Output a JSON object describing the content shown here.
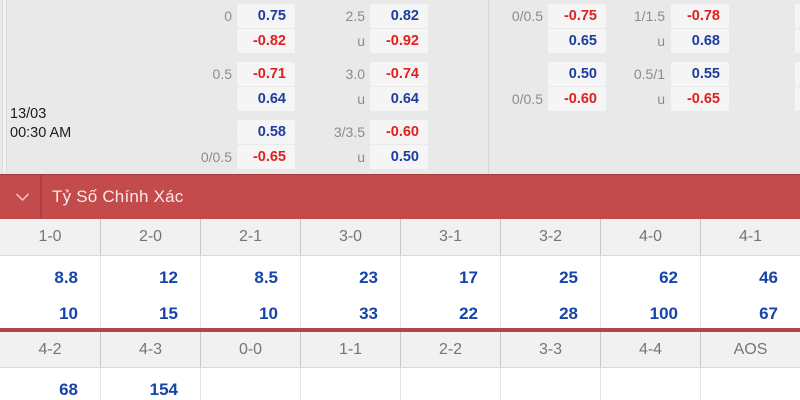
{
  "odds_panel": {
    "date": "13/03",
    "time": "00:30 AM",
    "columns": [
      {
        "name": "handicap-left",
        "rows": [
          {
            "label": "0",
            "value": "0.75",
            "color": "blue"
          },
          {
            "label": "",
            "value": "-0.82",
            "color": "red"
          },
          {
            "label": "0.5",
            "value": "-0.71",
            "color": "red"
          },
          {
            "label": "",
            "value": "0.64",
            "color": "blue"
          },
          {
            "label": "",
            "value": "0.58",
            "color": "blue"
          },
          {
            "label": "0/0.5",
            "value": "-0.65",
            "color": "red"
          }
        ]
      },
      {
        "name": "over-under-left",
        "rows": [
          {
            "label": "2.5",
            "value": "0.82",
            "color": "blue"
          },
          {
            "label": "u",
            "value": "-0.92",
            "color": "red"
          },
          {
            "label": "3.0",
            "value": "-0.74",
            "color": "red"
          },
          {
            "label": "u",
            "value": "0.64",
            "color": "blue"
          },
          {
            "label": "3/3.5",
            "value": "-0.60",
            "color": "red"
          },
          {
            "label": "u",
            "value": "0.50",
            "color": "blue"
          }
        ]
      },
      {
        "name": "handicap-right",
        "rows": [
          {
            "label": "0/0.5",
            "value": "-0.75",
            "color": "red"
          },
          {
            "label": "",
            "value": "0.65",
            "color": "blue"
          },
          {
            "label": "",
            "value": "0.50",
            "color": "blue"
          },
          {
            "label": "0/0.5",
            "value": "-0.60",
            "color": "red"
          },
          {
            "label": "",
            "value": "",
            "color": ""
          },
          {
            "label": "",
            "value": "",
            "color": ""
          }
        ]
      },
      {
        "name": "over-under-right",
        "rows": [
          {
            "label": "1/1.5",
            "value": "-0.78",
            "color": "red"
          },
          {
            "label": "u",
            "value": "0.68",
            "color": "blue"
          },
          {
            "label": "0.5/1",
            "value": "0.55",
            "color": "blue"
          },
          {
            "label": "u",
            "value": "-0.65",
            "color": "red"
          },
          {
            "label": "",
            "value": "",
            "color": ""
          },
          {
            "label": "",
            "value": "",
            "color": ""
          }
        ]
      }
    ]
  },
  "section_header": {
    "title": "Tỷ Số Chính Xác",
    "chevron_icon": "chevron-down-icon"
  },
  "correct_score": {
    "grid1": {
      "headers": [
        "1-0",
        "2-0",
        "2-1",
        "3-0",
        "3-1",
        "3-2",
        "4-0",
        "4-1"
      ],
      "row1": [
        "8.8",
        "12",
        "8.5",
        "23",
        "17",
        "25",
        "62",
        "46"
      ],
      "row2": [
        "10",
        "15",
        "10",
        "33",
        "22",
        "28",
        "100",
        "67"
      ]
    },
    "grid2": {
      "headers": [
        "4-2",
        "4-3",
        "0-0",
        "1-1",
        "2-2",
        "3-3",
        "4-4",
        "AOS"
      ],
      "row1": [
        "68",
        "154",
        "",
        "",
        "",
        "",
        "",
        ""
      ]
    }
  },
  "colors": {
    "panel_bg": "#e9e9e9",
    "odds_box_bg": "#f5f5f5",
    "odds_blue": "#1e3d9e",
    "odds_red": "#e11f1f",
    "label_gray": "#8c8c8c",
    "bar_red": "#c34b4b",
    "bar_text": "#fbe9e9",
    "score_blue": "#1545a8",
    "separator_red": "#b14646",
    "header_gray_bg": "#f1f1f1",
    "header_text": "#757575"
  }
}
